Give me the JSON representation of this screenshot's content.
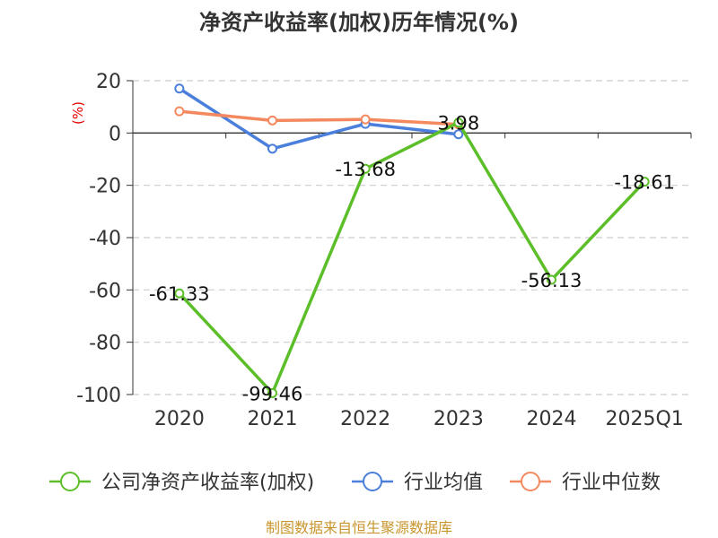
{
  "chart_data": {
    "type": "line",
    "title": "净资产收益率(加权)历年情况(%)",
    "unit_label": "(%)",
    "categories": [
      "2020",
      "2021",
      "2022",
      "2023",
      "2024",
      "2025Q1"
    ],
    "ylim": [
      -100,
      20
    ],
    "yticks": [
      20,
      0,
      -20,
      -40,
      -60,
      -80,
      -100
    ],
    "grid": true,
    "legend_position": "bottom",
    "series": [
      {
        "name": "公司净资产收益率(加权)",
        "color": "#5cbf2a",
        "values": [
          -61.33,
          -99.46,
          -13.68,
          3.98,
          -56.13,
          -18.61
        ],
        "labels": [
          "-61.33",
          "-99.46",
          "-13.68",
          "3.98",
          "-56.13",
          "-18.61"
        ]
      },
      {
        "name": "行业均值",
        "color": "#4a7fdb",
        "values": [
          17,
          -6,
          3.5,
          -0.5,
          null,
          null
        ]
      },
      {
        "name": "行业中位数",
        "color": "#f4895f",
        "values": [
          8.3,
          4.8,
          5.2,
          3.3,
          null,
          null
        ]
      }
    ]
  },
  "source": "制图数据来自恒生聚源数据库"
}
